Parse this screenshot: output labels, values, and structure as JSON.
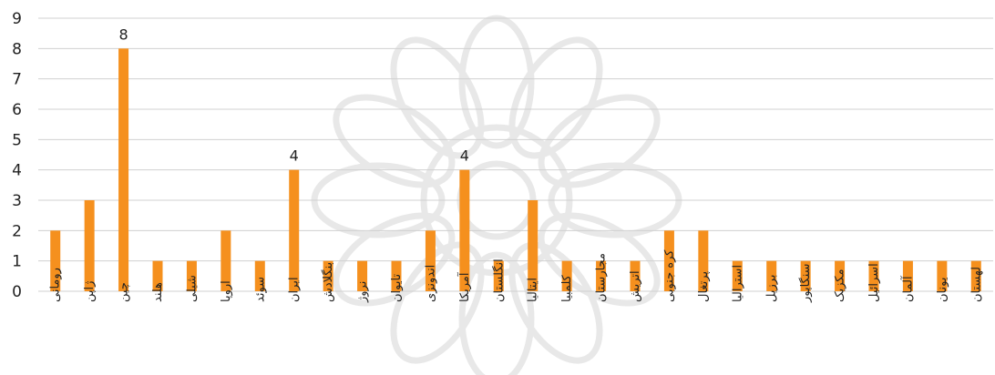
{
  "chart_data": {
    "type": "bar",
    "title": "",
    "xlabel": "",
    "ylabel": "",
    "ylim": [
      0,
      9
    ],
    "yticks": [
      "0",
      "1",
      "2",
      "3",
      "4",
      "5",
      "6",
      "7",
      "8",
      "9"
    ],
    "grid": true,
    "legend": "none",
    "bar_color": "#f5901e",
    "grid_color": "#d0d0d0",
    "categories": [
      "رومانی",
      "ژاپن",
      "چین",
      "هلند",
      "شیلی",
      "اروپا",
      "سوئد",
      "ایران",
      "بنگلادش",
      "نروژ",
      "تایوان",
      "اندونزی",
      "آمریکا",
      "انگلستان",
      "ایتالیا",
      "کلمبیا",
      "مجارستان",
      "اتریش",
      "کره جنوبی",
      "پرتغال",
      "استرالیا",
      "برزیل",
      "سنگاپور",
      "مکزیک",
      "اسرائیل",
      "آلمان",
      "یونان",
      "لهستان"
    ],
    "values": [
      2,
      3,
      8,
      1,
      1,
      2,
      1,
      4,
      1,
      1,
      1,
      2,
      4,
      1,
      3,
      1,
      1,
      1,
      2,
      2,
      1,
      1,
      1,
      1,
      1,
      1,
      1,
      1
    ],
    "data_labels": [
      null,
      null,
      "8",
      null,
      null,
      null,
      null,
      "4",
      null,
      null,
      null,
      null,
      "4",
      null,
      null,
      null,
      null,
      null,
      null,
      null,
      null,
      null,
      null,
      null,
      null,
      null,
      null,
      null
    ]
  }
}
